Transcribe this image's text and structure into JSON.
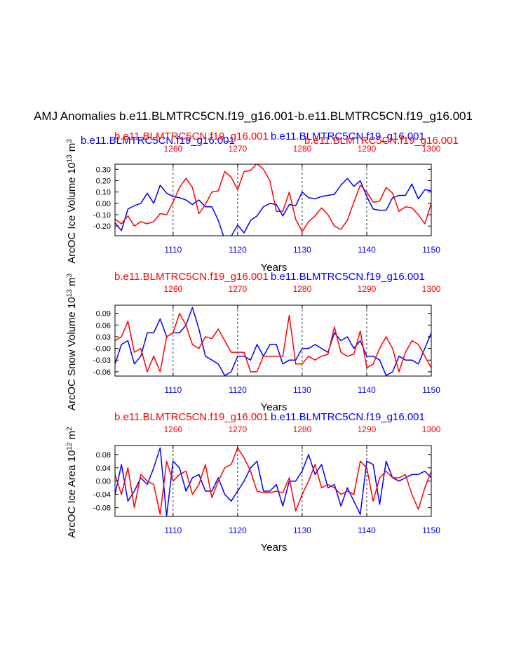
{
  "title": "AMJ Anomalies b.e11.BLMTRC5CN.f19_g16.001-b.e11.BLMTRC5CN.f19_g16.001",
  "colors": {
    "series_a": "#ff0000",
    "series_b": "#0000ff",
    "axis": "#000000"
  },
  "chart_data": [
    {
      "type": "line",
      "ylabel_parts": [
        "ArcOC Ice Volume 10",
        "13",
        " m",
        "3"
      ],
      "xlabel": "Years",
      "legend_left": "b.e11.BLMTRC5CN.f19_g16.001",
      "legend_mid": "b.e11.BLMTRC5CN.f19_g16.001",
      "legend_red_left": "b.e11.BLMTRC5CN.f19_g16.001",
      "legend_red_right": "b.e11.BLMTRC5CN.f19_g16.001",
      "legend_blue_left": "b.e11.BLMTRC5CN.f19_g16.001",
      "legend_blue_mid": "b.e11.BLMTRC5CN.f19_g16.001",
      "bottom_xlim": [
        1101,
        1150
      ],
      "bottom_ticks": [
        1110,
        1120,
        1130,
        1140,
        1150
      ],
      "top_xlim": [
        1251,
        1300
      ],
      "top_ticks": [
        1260,
        1270,
        1280,
        1290,
        1300
      ],
      "ylim": [
        -0.285,
        0.345
      ],
      "yticks": [
        0.3,
        0.2,
        0.1,
        0.0,
        -0.1,
        -0.2
      ],
      "ytick_labels": [
        "0.30",
        "0.20",
        "0.10",
        "0.00",
        "-0.10",
        "-0.20"
      ],
      "series": [
        {
          "name": "b.e11.BLMTRC5CN.f19_g16.001 (1101-1150)",
          "color": "blue",
          "axis": "bottom",
          "x": [
            1101,
            1102,
            1103,
            1104,
            1105,
            1106,
            1107,
            1108,
            1109,
            1110,
            1111,
            1112,
            1113,
            1114,
            1115,
            1116,
            1117,
            1118,
            1119,
            1120,
            1121,
            1122,
            1123,
            1124,
            1125,
            1126,
            1127,
            1128,
            1129,
            1130,
            1131,
            1132,
            1133,
            1134,
            1135,
            1136,
            1137,
            1138,
            1139,
            1140,
            1141,
            1142,
            1143,
            1144,
            1145,
            1146,
            1147,
            1148,
            1149,
            1150
          ],
          "values": [
            -0.17,
            -0.24,
            -0.05,
            -0.02,
            0.0,
            0.09,
            0.0,
            0.16,
            0.09,
            0.06,
            0.05,
            0.03,
            -0.01,
            0.03,
            -0.03,
            -0.03,
            -0.15,
            -0.32,
            -0.29,
            -0.19,
            -0.26,
            -0.15,
            -0.11,
            -0.03,
            0.0,
            -0.01,
            -0.11,
            -0.01,
            -0.02,
            0.1,
            0.05,
            0.04,
            0.06,
            0.07,
            0.08,
            0.16,
            0.22,
            0.15,
            0.2,
            0.06,
            -0.05,
            -0.06,
            -0.06,
            0.05,
            0.07,
            0.07,
            0.17,
            0.04,
            0.12,
            0.11
          ]
        },
        {
          "name": "b.e11.BLMTRC5CN.f19_g16.001 (1251-1300)",
          "color": "red",
          "axis": "top",
          "x": [
            1251,
            1252,
            1253,
            1254,
            1255,
            1256,
            1257,
            1258,
            1259,
            1260,
            1261,
            1262,
            1263,
            1264,
            1265,
            1266,
            1267,
            1268,
            1269,
            1270,
            1271,
            1272,
            1273,
            1274,
            1275,
            1276,
            1277,
            1278,
            1279,
            1280,
            1281,
            1282,
            1283,
            1284,
            1285,
            1286,
            1287,
            1288,
            1289,
            1290,
            1291,
            1292,
            1293,
            1294,
            1295,
            1296,
            1297,
            1298,
            1299,
            1300
          ],
          "values": [
            -0.14,
            -0.18,
            -0.11,
            -0.2,
            -0.16,
            -0.18,
            -0.16,
            -0.09,
            -0.1,
            0.01,
            0.14,
            0.22,
            0.14,
            -0.09,
            -0.01,
            0.1,
            0.11,
            0.28,
            0.23,
            0.12,
            0.28,
            0.29,
            0.35,
            0.3,
            0.2,
            -0.07,
            -0.07,
            0.1,
            -0.14,
            -0.25,
            -0.16,
            -0.11,
            -0.04,
            -0.1,
            -0.2,
            -0.23,
            -0.15,
            0.01,
            0.16,
            0.1,
            0.01,
            0.02,
            0.14,
            0.09,
            -0.07,
            -0.03,
            -0.04,
            -0.1,
            -0.18,
            0.0
          ]
        }
      ]
    },
    {
      "type": "line",
      "ylabel_parts": [
        "ArcOC Snow Volume 10",
        "13",
        " m",
        "3"
      ],
      "xlabel": "Years",
      "legend_red_left": "b.e11.BLMTRC5CN.f19_g16.001",
      "legend_blue_mid": "b.e11.BLMTRC5CN.f19_g16.001",
      "bottom_xlim": [
        1101,
        1150
      ],
      "bottom_ticks": [
        1110,
        1120,
        1130,
        1140,
        1150
      ],
      "top_xlim": [
        1251,
        1300
      ],
      "top_ticks": [
        1260,
        1270,
        1280,
        1290,
        1300
      ],
      "ylim": [
        -0.071,
        0.111
      ],
      "yticks": [
        0.09,
        0.06,
        0.03,
        0.0,
        -0.03,
        -0.06
      ],
      "ytick_labels": [
        "0.09",
        "0.06",
        "0.03",
        "-0.00",
        "-0.03",
        "-0.06"
      ],
      "series": [
        {
          "name": "b.e11.BLMTRC5CN.f19_g16.001 (1101-1150)",
          "color": "blue",
          "axis": "bottom",
          "x": [
            1101,
            1102,
            1103,
            1104,
            1105,
            1106,
            1107,
            1108,
            1109,
            1110,
            1111,
            1112,
            1113,
            1114,
            1115,
            1116,
            1117,
            1118,
            1119,
            1120,
            1121,
            1122,
            1123,
            1124,
            1125,
            1126,
            1127,
            1128,
            1129,
            1130,
            1131,
            1132,
            1133,
            1134,
            1135,
            1136,
            1137,
            1138,
            1139,
            1140,
            1141,
            1142,
            1143,
            1144,
            1145,
            1146,
            1147,
            1148,
            1149,
            1150
          ],
          "values": [
            -0.04,
            0.01,
            0.02,
            -0.04,
            -0.02,
            0.04,
            0.04,
            0.076,
            0.03,
            0.04,
            0.04,
            0.06,
            0.105,
            0.05,
            -0.02,
            -0.03,
            -0.04,
            -0.07,
            -0.06,
            -0.02,
            -0.02,
            -0.03,
            0.01,
            -0.02,
            0.01,
            0.01,
            -0.04,
            -0.03,
            -0.03,
            0.0,
            0.0,
            0.01,
            0.0,
            -0.01,
            0.04,
            0.02,
            0.03,
            0.0,
            0.02,
            -0.02,
            -0.02,
            -0.03,
            -0.07,
            -0.06,
            -0.02,
            -0.03,
            -0.03,
            -0.04,
            0.0,
            0.04
          ]
        },
        {
          "name": "b.e11.BLMTRC5CN.f19_g16.001 (1251-1300)",
          "color": "red",
          "axis": "top",
          "x": [
            1251,
            1252,
            1253,
            1254,
            1255,
            1256,
            1257,
            1258,
            1259,
            1260,
            1261,
            1262,
            1263,
            1264,
            1265,
            1266,
            1267,
            1268,
            1269,
            1270,
            1271,
            1272,
            1273,
            1274,
            1275,
            1276,
            1277,
            1278,
            1279,
            1280,
            1281,
            1282,
            1283,
            1284,
            1285,
            1286,
            1287,
            1288,
            1289,
            1290,
            1291,
            1292,
            1293,
            1294,
            1295,
            1296,
            1297,
            1298,
            1299,
            1300
          ],
          "values": [
            0.02,
            0.03,
            0.07,
            -0.01,
            0.0,
            -0.06,
            -0.02,
            -0.06,
            0.03,
            0.04,
            0.09,
            0.06,
            0.01,
            0.0,
            0.03,
            0.025,
            0.05,
            0.02,
            -0.01,
            -0.01,
            -0.01,
            -0.06,
            -0.06,
            -0.02,
            -0.02,
            -0.02,
            -0.02,
            0.085,
            -0.04,
            -0.04,
            -0.02,
            -0.03,
            -0.02,
            -0.015,
            0.055,
            -0.01,
            -0.02,
            -0.015,
            0.045,
            -0.05,
            -0.04,
            0.0,
            0.03,
            0.0,
            -0.06,
            -0.01,
            0.02,
            0.01,
            -0.02,
            -0.05
          ]
        }
      ]
    },
    {
      "type": "line",
      "ylabel_parts": [
        "ArcOC Ice Area 10",
        "12",
        " m",
        "2"
      ],
      "xlabel": "Years",
      "legend_red_left": "b.e11.BLMTRC5CN.f19_g16.001",
      "legend_blue_mid": "b.e11.BLMTRC5CN.f19_g16.001",
      "bottom_xlim": [
        1101,
        1150
      ],
      "bottom_ticks": [
        1110,
        1120,
        1130,
        1140,
        1150
      ],
      "top_xlim": [
        1251,
        1300
      ],
      "top_ticks": [
        1260,
        1270,
        1280,
        1290,
        1300
      ],
      "ylim": [
        -0.106,
        0.107
      ],
      "yticks": [
        0.08,
        0.04,
        0.0,
        -0.04,
        -0.08
      ],
      "ytick_labels": [
        "0.08",
        "0.04",
        "0.00",
        "-0.04",
        "-0.08"
      ],
      "series": [
        {
          "name": "b.e11.BLMTRC5CN.f19_g16.001 (1101-1150)",
          "color": "blue",
          "axis": "bottom",
          "x": [
            1101,
            1102,
            1103,
            1104,
            1105,
            1106,
            1107,
            1108,
            1109,
            1110,
            1111,
            1112,
            1113,
            1114,
            1115,
            1116,
            1117,
            1118,
            1119,
            1120,
            1121,
            1122,
            1123,
            1124,
            1125,
            1126,
            1127,
            1128,
            1129,
            1130,
            1131,
            1132,
            1133,
            1134,
            1135,
            1136,
            1137,
            1138,
            1139,
            1140,
            1141,
            1142,
            1143,
            1144,
            1145,
            1146,
            1147,
            1148,
            1149,
            1150
          ],
          "values": [
            -0.04,
            0.05,
            -0.06,
            -0.03,
            0.01,
            -0.01,
            0.04,
            0.1,
            -0.105,
            0.06,
            0.04,
            -0.03,
            0.01,
            0.02,
            -0.03,
            -0.03,
            0.01,
            -0.04,
            -0.06,
            -0.03,
            0.0,
            0.04,
            0.06,
            -0.03,
            -0.03,
            -0.01,
            -0.075,
            0.0,
            0.0,
            0.03,
            0.08,
            0.02,
            0.05,
            -0.02,
            -0.01,
            -0.075,
            -0.02,
            -0.06,
            -0.1,
            0.06,
            0.05,
            -0.07,
            0.06,
            0.01,
            0.0,
            0.01,
            0.02,
            0.02,
            0.03,
            0.01
          ]
        },
        {
          "name": "b.e11.BLMTRC5CN.f19_g16.001 (1251-1300)",
          "color": "red",
          "axis": "top",
          "x": [
            1251,
            1252,
            1253,
            1254,
            1255,
            1256,
            1257,
            1258,
            1259,
            1260,
            1261,
            1262,
            1263,
            1264,
            1265,
            1266,
            1267,
            1268,
            1269,
            1270,
            1271,
            1272,
            1273,
            1274,
            1275,
            1276,
            1277,
            1278,
            1279,
            1280,
            1281,
            1282,
            1283,
            1284,
            1285,
            1286,
            1287,
            1288,
            1289,
            1290,
            1291,
            1292,
            1293,
            1294,
            1295,
            1296,
            1297,
            1298,
            1299,
            1300
          ],
          "values": [
            0.02,
            -0.04,
            0.04,
            -0.08,
            0.02,
            0.0,
            -0.01,
            -0.1,
            0.06,
            0.0,
            0.02,
            0.03,
            -0.04,
            -0.01,
            0.05,
            -0.05,
            0.0,
            0.04,
            0.05,
            0.1,
            0.07,
            0.03,
            -0.03,
            -0.035,
            -0.035,
            -0.03,
            -0.035,
            0.01,
            -0.09,
            -0.04,
            0.0,
            0.05,
            -0.02,
            -0.01,
            -0.02,
            -0.04,
            -0.03,
            -0.04,
            0.06,
            0.04,
            -0.06,
            0.01,
            0.03,
            0.01,
            0.01,
            0.02,
            -0.04,
            -0.085,
            -0.02,
            0.03
          ]
        }
      ]
    }
  ]
}
